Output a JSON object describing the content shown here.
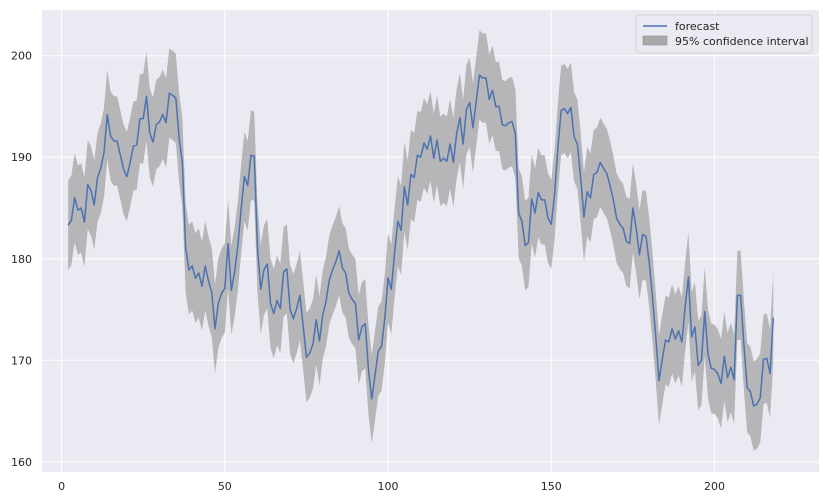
{
  "chart_data": {
    "type": "line",
    "title": "",
    "xlabel": "",
    "ylabel": "",
    "xlim": [
      -6,
      232
    ],
    "ylim": [
      159,
      204.5
    ],
    "x_ticks": [
      0,
      50,
      100,
      150,
      200
    ],
    "y_ticks": [
      160,
      170,
      180,
      190,
      200
    ],
    "grid": true,
    "legend": {
      "position": "top-right",
      "entries": [
        "forecast",
        "95% confidence interval"
      ]
    },
    "colors": {
      "background": "#eaeaf2",
      "grid": "#ffffff",
      "forecast": "#4c72b0",
      "confidence_interval": "#a9a9a9"
    },
    "ci_half_width": 4.4,
    "series": [
      {
        "name": "forecast",
        "x_start": 2,
        "x_step": 1,
        "values": [
          183.3,
          183.8,
          186.0,
          184.8,
          185.0,
          183.6,
          187.3,
          186.7,
          185.3,
          188.0,
          188.9,
          190.5,
          194.2,
          192.1,
          191.6,
          191.6,
          190.2,
          188.8,
          188.1,
          189.5,
          191.1,
          191.2,
          193.8,
          193.8,
          196.0,
          192.4,
          191.5,
          193.2,
          193.5,
          194.2,
          193.4,
          196.3,
          196.1,
          195.8,
          191.9,
          189.4,
          181.1,
          178.9,
          179.3,
          178.1,
          178.6,
          177.3,
          179.3,
          177.8,
          176.7,
          173.1,
          175.6,
          176.6,
          177.1,
          181.5,
          176.9,
          178.7,
          181.3,
          184.9,
          188.1,
          187.2,
          190.2,
          190.1,
          181.1,
          177.0,
          178.9,
          179.5,
          175.6,
          174.6,
          175.9,
          175.1,
          178.7,
          179.0,
          175.0,
          174.1,
          175.1,
          176.4,
          173.4,
          170.3,
          170.7,
          171.6,
          174.0,
          171.9,
          174.5,
          175.8,
          177.9,
          178.9,
          179.7,
          180.8,
          179.1,
          178.6,
          176.6,
          176.0,
          175.6,
          172.0,
          173.3,
          173.6,
          169.1,
          166.2,
          168.5,
          170.9,
          171.4,
          174.1,
          178.1,
          177.0,
          180.6,
          183.7,
          182.8,
          187.1,
          185.3,
          188.3,
          188.0,
          190.2,
          190.0,
          191.4,
          190.8,
          192.1,
          189.9,
          191.7,
          189.6,
          189.9,
          189.6,
          191.3,
          189.5,
          192.3,
          193.9,
          191.3,
          194.7,
          195.4,
          192.9,
          195.5,
          198.1,
          197.8,
          197.8,
          195.7,
          196.6,
          195.0,
          195.0,
          193.2,
          193.1,
          193.4,
          193.5,
          192.3,
          184.5,
          183.7,
          181.3,
          181.6,
          185.9,
          184.5,
          186.5,
          185.8,
          185.8,
          184.0,
          183.4,
          186.3,
          190.8,
          194.6,
          194.8,
          194.3,
          194.9,
          192.0,
          191.3,
          188.0,
          184.1,
          186.6,
          186.0,
          188.3,
          188.5,
          189.5,
          188.9,
          188.4,
          187.2,
          185.8,
          184.0,
          183.4,
          183.0,
          181.7,
          181.5,
          185.0,
          183.0,
          180.4,
          182.4,
          182.2,
          179.6,
          176.2,
          172.3,
          168.0,
          170.1,
          172.0,
          171.8,
          173.1,
          172.1,
          172.9,
          171.8,
          175.3,
          178.2,
          172.3,
          173.3,
          169.5,
          170.0,
          174.8,
          170.6,
          169.2,
          169.1,
          168.7,
          167.7,
          170.4,
          168.3,
          169.3,
          168.1,
          176.4,
          176.4,
          171.5,
          167.3,
          166.9,
          165.5,
          165.7,
          166.3,
          170.1,
          170.2,
          168.7,
          174.2
        ]
      }
    ]
  }
}
